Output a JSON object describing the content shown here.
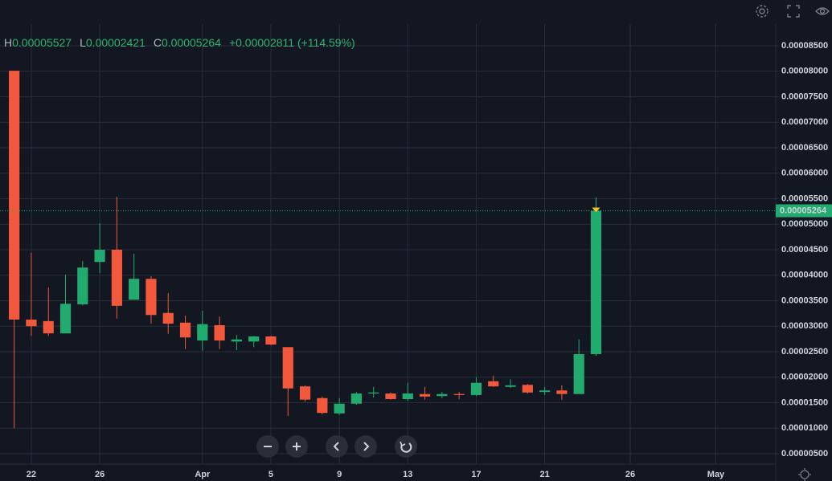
{
  "chart_data": {
    "type": "candlestick",
    "header": [
      {
        "label": "H",
        "value": "0.00005527"
      },
      {
        "label": "L",
        "value": "0.00002421"
      },
      {
        "label": "C",
        "value": "0.00005264"
      }
    ],
    "change": "+0.00002811 (+114.59%)",
    "last_price_label": "0.00005264",
    "categories": [
      null,
      "22",
      null,
      null,
      null,
      "26",
      null,
      null,
      null,
      null,
      null,
      "Apr",
      null,
      null,
      null,
      "5",
      null,
      null,
      null,
      "9",
      null,
      null,
      null,
      "13",
      null,
      null,
      null,
      "17",
      null,
      null,
      null,
      "21",
      null,
      null,
      null,
      null,
      "26",
      null,
      null,
      null,
      null,
      "May",
      null,
      null,
      null
    ],
    "open": [
      8.01e-05,
      3.13e-05,
      3.1e-05,
      2.86e-05,
      3.43e-05,
      4.26e-05,
      4.5e-05,
      3.52e-05,
      3.93e-05,
      3.26e-05,
      3.07e-05,
      2.72e-05,
      3.02e-05,
      2.7e-05,
      2.7e-05,
      2.8e-05,
      2.59e-05,
      1.82e-05,
      1.59e-05,
      1.29e-05,
      1.48e-05,
      1.68e-05,
      1.68e-05,
      1.57e-05,
      1.67e-05,
      1.63e-05,
      1.67e-05,
      1.65e-05,
      1.92e-05,
      1.81e-05,
      1.85e-05,
      1.71e-05,
      1.74e-05,
      1.67e-05,
      2.453e-05,
      null,
      null,
      null,
      null,
      null,
      null,
      null,
      null,
      null,
      null
    ],
    "high": [
      8.01e-05,
      4.44e-05,
      3.76e-05,
      4.01e-05,
      4.28e-05,
      5.02e-05,
      5.54e-05,
      4.42e-05,
      3.98e-05,
      3.65e-05,
      3.21e-05,
      3.3e-05,
      3.19e-05,
      2.83e-05,
      2.81e-05,
      2.81e-05,
      2.59e-05,
      1.84e-05,
      1.62e-05,
      1.59e-05,
      1.71e-05,
      1.81e-05,
      1.7e-05,
      1.89e-05,
      1.81e-05,
      1.71e-05,
      1.71e-05,
      2e-05,
      2.03e-05,
      1.96e-05,
      1.87e-05,
      1.81e-05,
      1.84e-05,
      2.74e-05,
      5.527e-05,
      null,
      null,
      null,
      null,
      null,
      null,
      null,
      null,
      null,
      null
    ],
    "low": [
      1e-05,
      2.81e-05,
      2.81e-05,
      2.86e-05,
      3.41e-05,
      4.04e-05,
      3.15e-05,
      3.52e-05,
      3.05e-05,
      2.85e-05,
      2.55e-05,
      2.52e-05,
      2.55e-05,
      2.53e-05,
      2.59e-05,
      2.63e-05,
      1.24e-05,
      1.52e-05,
      1.27e-05,
      1.26e-05,
      1.46e-05,
      1.6e-05,
      1.56e-05,
      1.54e-05,
      1.56e-05,
      1.59e-05,
      1.57e-05,
      1.63e-05,
      1.81e-05,
      1.79e-05,
      1.68e-05,
      1.65e-05,
      1.56e-05,
      1.67e-05,
      2.421e-05,
      null,
      null,
      null,
      null,
      null,
      null,
      null,
      null,
      null,
      null
    ],
    "close": [
      3.13e-05,
      3e-05,
      2.86e-05,
      3.44e-05,
      4.15e-05,
      4.5e-05,
      3.4e-05,
      3.93e-05,
      3.22e-05,
      3.05e-05,
      2.78e-05,
      3.04e-05,
      2.72e-05,
      2.74e-05,
      2.8e-05,
      2.64e-05,
      1.78e-05,
      1.56e-05,
      1.3e-05,
      1.48e-05,
      1.68e-05,
      1.7e-05,
      1.57e-05,
      1.68e-05,
      1.62e-05,
      1.67e-05,
      1.65e-05,
      1.89e-05,
      1.82e-05,
      1.84e-05,
      1.7e-05,
      1.74e-05,
      1.67e-05,
      2.453e-05,
      5.264e-05,
      null,
      null,
      null,
      null,
      null,
      null,
      null,
      null,
      null,
      null
    ],
    "up_color": "#22ab6e",
    "down_color": "#f2583b",
    "ylim": [
      2.95e-06,
      8.925e-05
    ],
    "yticks": [
      {
        "value": 5e-06,
        "label": "0.00000500"
      },
      {
        "value": 1e-05,
        "label": "0.00001000"
      },
      {
        "value": 1.5e-05,
        "label": "0.00001500"
      },
      {
        "value": 2e-05,
        "label": "0.00002000"
      },
      {
        "value": 2.5e-05,
        "label": "0.00002500"
      },
      {
        "value": 3e-05,
        "label": "0.00003000"
      },
      {
        "value": 3.5e-05,
        "label": "0.00003500"
      },
      {
        "value": 4e-05,
        "label": "0.00004000"
      },
      {
        "value": 4.5e-05,
        "label": "0.00004500"
      },
      {
        "value": 5e-05,
        "label": "0.00005000"
      },
      {
        "value": 5.5e-05,
        "label": "0.00005500"
      },
      {
        "value": 6e-05,
        "label": "0.00006000"
      },
      {
        "value": 6.5e-05,
        "label": "0.00006500"
      },
      {
        "value": 7e-05,
        "label": "0.00007000"
      },
      {
        "value": 7.5e-05,
        "label": "0.00007500"
      },
      {
        "value": 8e-05,
        "label": "0.00008000"
      },
      {
        "value": 8.5e-05,
        "label": "0.00008500"
      }
    ],
    "grid": true
  }
}
